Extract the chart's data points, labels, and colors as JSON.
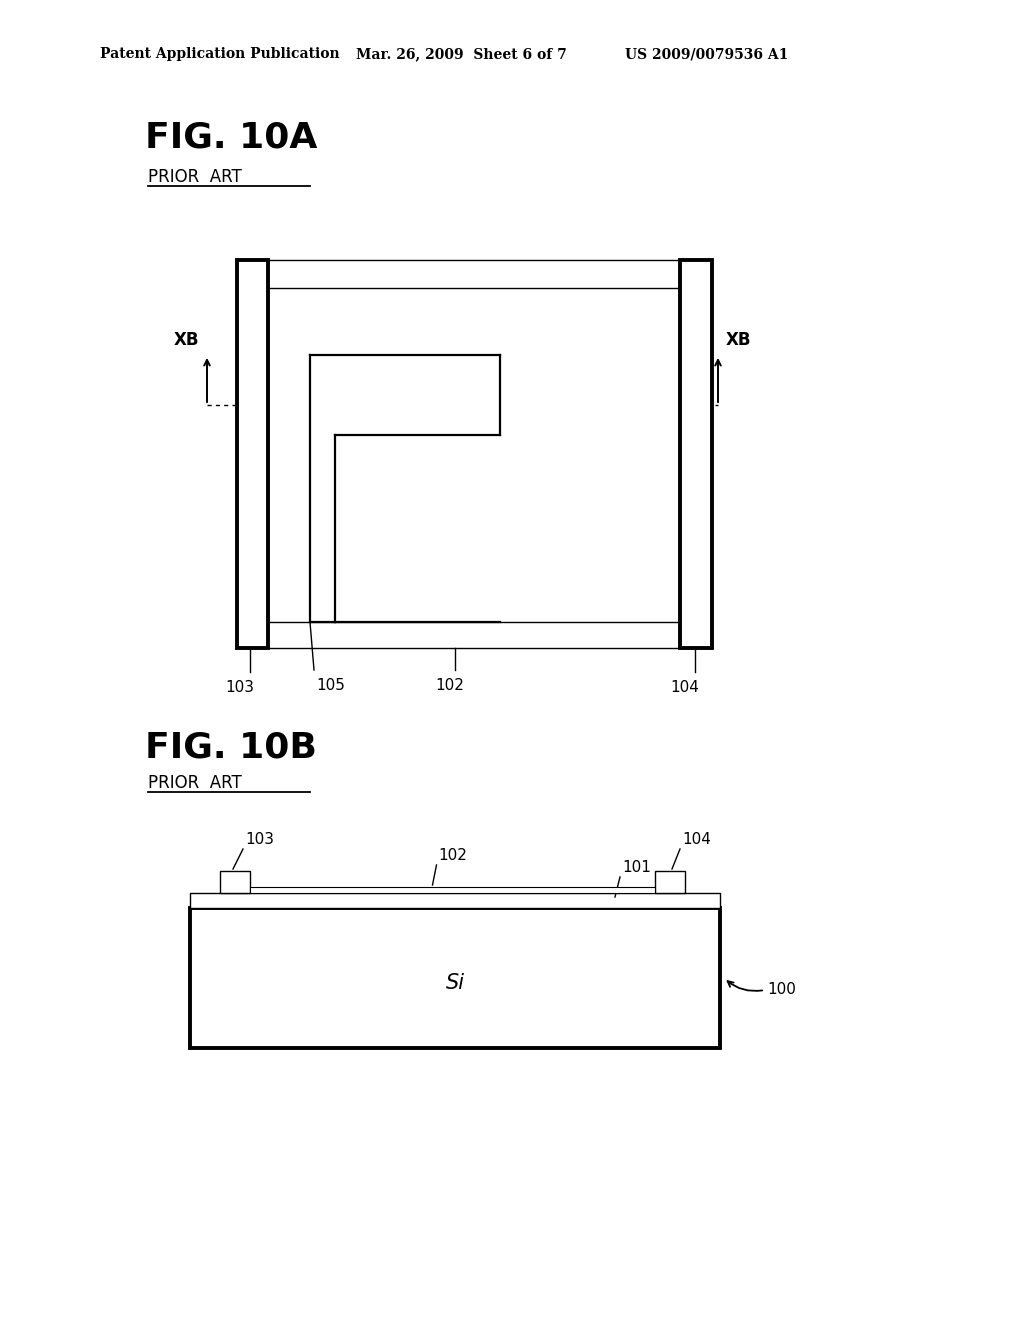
{
  "bg_color": "#ffffff",
  "header_left": "Patent Application Publication",
  "header_mid": "Mar. 26, 2009  Sheet 6 of 7",
  "header_right": "US 2009/0079536 A1",
  "fig10a_title": "FIG. 10A",
  "fig10b_title": "FIG. 10B",
  "prior_art": "PRIOR  ART",
  "lw_thick": 2.8,
  "lw_med": 1.6,
  "lw_thin": 1.0
}
